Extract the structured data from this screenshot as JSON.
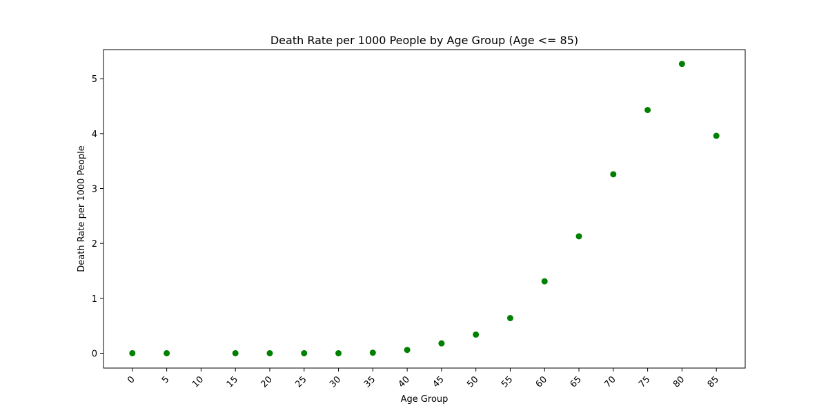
{
  "chart_data": {
    "type": "scatter",
    "title": "Death Rate per 1000 People by Age Group (Age <= 85)",
    "xlabel": "Age Group",
    "ylabel": "Death Rate per 1000 People",
    "x_ticks": [
      "0",
      "5",
      "10",
      "15",
      "20",
      "25",
      "30",
      "35",
      "40",
      "45",
      "50",
      "55",
      "60",
      "65",
      "70",
      "75",
      "80",
      "85"
    ],
    "y_ticks": [
      0,
      1,
      2,
      3,
      4,
      5
    ],
    "xlim": [
      -4.2,
      89.2
    ],
    "ylim": [
      -0.27,
      5.53
    ],
    "grid": false,
    "marker_color": "#008000",
    "series": [
      {
        "x": [
          0,
          5,
          15,
          20,
          25,
          30,
          35,
          40,
          45,
          50,
          55,
          60,
          65,
          70,
          75,
          80,
          85
        ],
        "y": [
          0.0,
          0.0,
          0.0,
          0.0,
          0.0,
          0.0,
          0.01,
          0.06,
          0.18,
          0.34,
          0.64,
          1.31,
          2.13,
          3.26,
          4.43,
          5.27,
          3.96
        ]
      }
    ]
  }
}
